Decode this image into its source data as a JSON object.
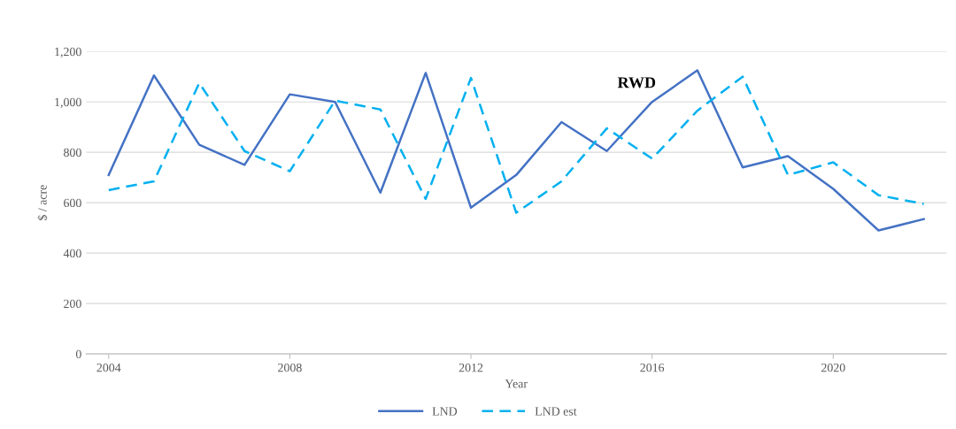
{
  "chart_data": {
    "type": "line",
    "xlabel": "Year",
    "ylabel": "$ / acre",
    "x": [
      2004,
      2005,
      2006,
      2007,
      2008,
      2009,
      2010,
      2011,
      2012,
      2013,
      2014,
      2015,
      2016,
      2017,
      2018,
      2019,
      2020,
      2021,
      2022
    ],
    "series": [
      {
        "name": "LND",
        "color": "#4472c4",
        "line_style": "solid",
        "values": [
          710,
          1105,
          830,
          750,
          1030,
          1000,
          640,
          1115,
          580,
          710,
          920,
          805,
          1000,
          1125,
          740,
          785,
          655,
          490,
          535
        ]
      },
      {
        "name": "LND est",
        "color": "#00b0f0",
        "line_style": "dashed",
        "values": [
          650,
          685,
          1075,
          805,
          725,
          1005,
          970,
          615,
          1095,
          560,
          685,
          895,
          775,
          965,
          1100,
          710,
          760,
          630,
          595
        ]
      }
    ],
    "xlim": [
      2003.5,
      2022.5
    ],
    "xticks": [
      2004,
      2008,
      2012,
      2016,
      2020
    ],
    "ylim": [
      0,
      1200
    ],
    "yticks": [
      {
        "value": 0,
        "label": "0"
      },
      {
        "value": 200,
        "label": "200"
      },
      {
        "value": 400,
        "label": "400"
      },
      {
        "value": 600,
        "label": "600"
      },
      {
        "value": 800,
        "label": "800"
      },
      {
        "value": 1000,
        "label": "1,000"
      },
      {
        "value": 1200,
        "label": "1,200"
      }
    ],
    "grid": "y",
    "legend": "bottom",
    "marker": "none",
    "annotations": [
      "RWD"
    ]
  }
}
